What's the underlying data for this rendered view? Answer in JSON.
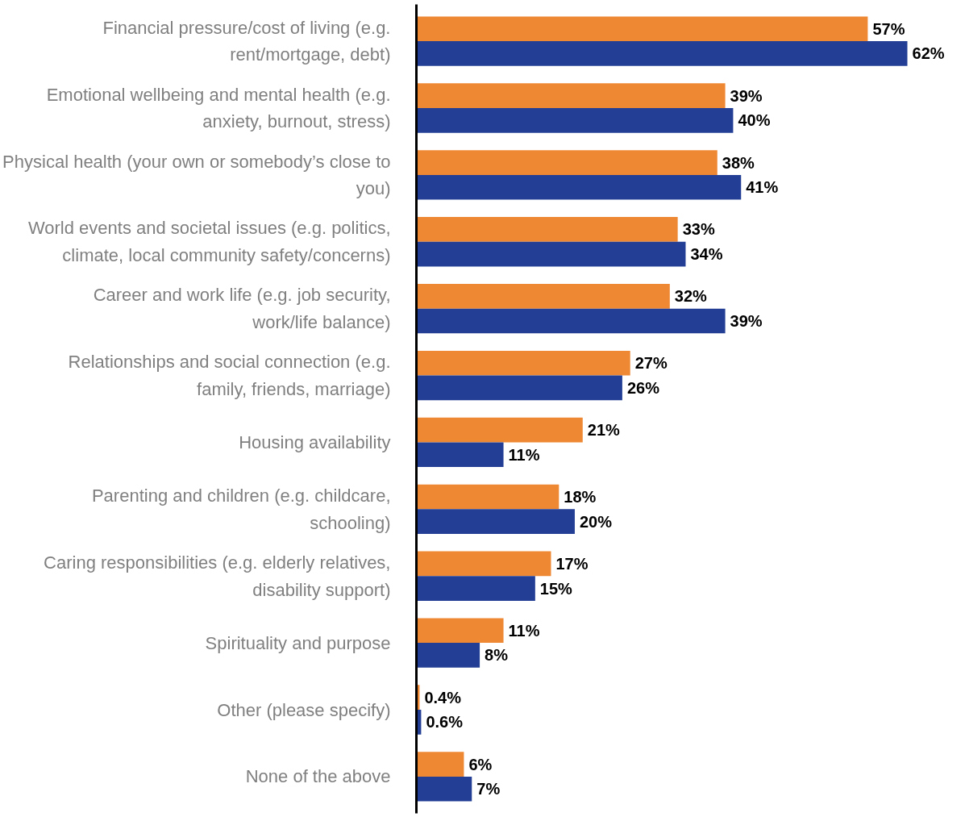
{
  "chart_data": {
    "type": "bar",
    "orientation": "horizontal",
    "categories": [
      "Financial pressure/cost of living (e.g. rent/mortgage, debt)",
      "Emotional wellbeing and mental health (e.g. anxiety, burnout, stress)",
      "Physical health (your own or somebody’s close to you)",
      "World events and societal issues (e.g. politics, climate, local community safety/concerns)",
      "Career and work life (e.g. job security, work/life balance)",
      "Relationships and social connection (e.g. family, friends, marriage)",
      "Housing availability",
      "Parenting and children (e.g. childcare, schooling)",
      "Caring responsibilities (e.g. elderly relatives, disability support)",
      "Spirituality and purpose",
      "Other (please specify)",
      "None of the above"
    ],
    "series": [
      {
        "color": "#ef8833",
        "values": [
          57,
          39,
          38,
          33,
          32,
          27,
          21,
          18,
          17,
          11,
          0.4,
          6
        ],
        "value_labels": [
          "57%",
          "39%",
          "38%",
          "33%",
          "32%",
          "27%",
          "21%",
          "18%",
          "17%",
          "11%",
          "0.4%",
          "6%"
        ]
      },
      {
        "color": "#233f95",
        "values": [
          62,
          40,
          41,
          34,
          39,
          26,
          11,
          20,
          15,
          8,
          0.6,
          7
        ],
        "value_labels": [
          "62%",
          "40%",
          "41%",
          "34%",
          "39%",
          "26%",
          "11%",
          "20%",
          "15%",
          "8%",
          "0.6%",
          "7%"
        ]
      }
    ],
    "grid": false
  }
}
